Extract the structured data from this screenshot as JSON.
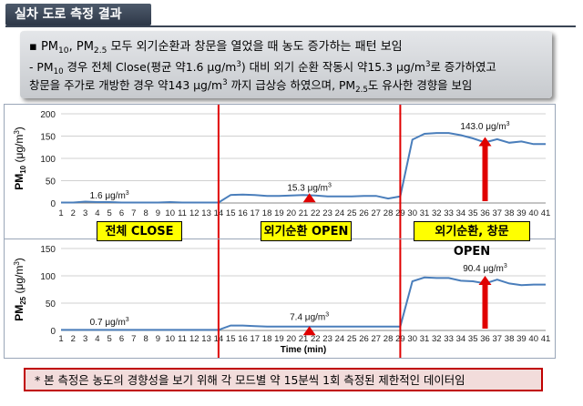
{
  "header": {
    "title": "실차 도로 측정 결과"
  },
  "summary": {
    "bullet": "▪",
    "line1_a": "PM",
    "line1_a_sub": "10",
    "line1_b": ", PM",
    "line1_b_sub": "2.5",
    "line1_c": " 모두 외기순환과 창문을 열었을 때 농도 증가하는 패턴 보임",
    "line2_a": "- PM",
    "line2_a_sub": "10",
    "line2_b": " 경우 전체 Close(평균 약1.6 μg/m",
    "line2_b_sup": "3",
    "line2_c": ") 대비 외기 순환 작동시 약15.3 μg/m",
    "line2_c_sup": "3",
    "line2_d": "로 증가하였고",
    "line3_a": "창문을 주가로 개방한 경우 약143 μg/m",
    "line3_a_sup": "3",
    "line3_b": " 까지 급상승 하였으며, PM",
    "line3_b_sub": "2.5",
    "line3_c": "도 유사한 경향을 보임"
  },
  "modes": [
    "전체 CLOSE",
    "외기순환 OPEN",
    "외기순환, 창문 OPEN"
  ],
  "note": "* 본 측정은 농도의 경향성을 보기 위해 각 모드별 약 15분씩 1회 측정된 제한적인 데이터임",
  "chart_data": [
    {
      "type": "line",
      "ylabel_main": "PM",
      "ylabel_sub": "10",
      "ylabel_unit": " (μg/m",
      "ylabel_sup": "3",
      "ylabel_close": ")",
      "xlabel": "",
      "ylim": [
        0,
        200
      ],
      "yticks": [
        "0",
        "50",
        "100",
        "150",
        "200"
      ],
      "xticks": [
        "1",
        "2",
        "3",
        "4",
        "5",
        "6",
        "7",
        "8",
        "9",
        "10",
        "11",
        "12",
        "13",
        "14",
        "15",
        "16",
        "17",
        "18",
        "19",
        "20",
        "21",
        "22",
        "23",
        "24",
        "25",
        "26",
        "27",
        "28",
        "29",
        "30",
        "31",
        "32",
        "33",
        "34",
        "35",
        "36",
        "37",
        "38",
        "39",
        "40",
        "41"
      ],
      "x": [
        1,
        2,
        3,
        4,
        5,
        6,
        7,
        8,
        9,
        10,
        11,
        12,
        13,
        14,
        15,
        16,
        17,
        18,
        19,
        20,
        21,
        22,
        23,
        24,
        25,
        26,
        27,
        28,
        29,
        30,
        31,
        32,
        33,
        34,
        35,
        36,
        37,
        38,
        39,
        40,
        41
      ],
      "series": [
        {
          "values": [
            1,
            1,
            3,
            2,
            2,
            1,
            1,
            1,
            1,
            2,
            1,
            1,
            1,
            1,
            18,
            19,
            18,
            16,
            16,
            17,
            18,
            17,
            15,
            15,
            15,
            16,
            16,
            10,
            15,
            142,
            155,
            157,
            157,
            152,
            145,
            136,
            143,
            135,
            138,
            132,
            132
          ]
        }
      ],
      "line_color": "#4a7ebb",
      "annotations": [
        {
          "text": "1.6 μg/m",
          "sup": "3",
          "x": 5,
          "y": 10
        },
        {
          "text": "15.3 μg/m",
          "sup": "3",
          "x": 21.5,
          "y": 28
        },
        {
          "text": "143.0 μg/m",
          "sup": "3",
          "x": 36,
          "y": 165
        }
      ],
      "arrows": [
        {
          "x": 21.5,
          "y_from": 0,
          "y_to": 22
        },
        {
          "x": 36,
          "y_from": 0,
          "y_to": 148
        }
      ],
      "dividers": [
        14,
        29
      ],
      "grid": true
    },
    {
      "type": "line",
      "ylabel_main": "PM",
      "ylabel_sub": "25",
      "ylabel_unit": " (μg/m",
      "ylabel_sup": "3",
      "ylabel_close": ")",
      "xlabel": "Time (min)",
      "ylim": [
        0,
        150
      ],
      "yticks": [
        "0",
        "50",
        "100",
        "150"
      ],
      "xticks": [
        "1",
        "2",
        "3",
        "4",
        "5",
        "6",
        "7",
        "8",
        "9",
        "10",
        "11",
        "12",
        "13",
        "14",
        "15",
        "16",
        "17",
        "18",
        "19",
        "20",
        "21",
        "22",
        "23",
        "24",
        "25",
        "26",
        "27",
        "28",
        "29",
        "30",
        "31",
        "32",
        "33",
        "34",
        "35",
        "36",
        "37",
        "38",
        "39",
        "40",
        "41"
      ],
      "x": [
        1,
        2,
        3,
        4,
        5,
        6,
        7,
        8,
        9,
        10,
        11,
        12,
        13,
        14,
        15,
        16,
        17,
        18,
        19,
        20,
        21,
        22,
        23,
        24,
        25,
        26,
        27,
        28,
        29,
        30,
        31,
        32,
        33,
        34,
        35,
        36,
        37,
        38,
        39,
        40,
        41
      ],
      "series": [
        {
          "values": [
            1,
            1,
            1,
            1,
            1,
            1,
            1,
            1,
            1,
            1,
            1,
            1,
            1,
            1,
            9,
            9,
            8,
            7,
            7,
            7,
            7,
            7,
            7,
            7,
            7,
            7,
            7,
            7,
            7,
            90,
            97,
            96,
            96,
            91,
            90,
            86,
            93,
            86,
            83,
            84,
            84
          ]
        }
      ],
      "line_color": "#4a7ebb",
      "annotations": [
        {
          "text": "0.7 μg/m",
          "sup": "3",
          "x": 5,
          "y": 10
        },
        {
          "text": "7.4 μg/m",
          "sup": "3",
          "x": 21.5,
          "y": 19
        },
        {
          "text": "90.4 μg/m",
          "sup": "3",
          "x": 36,
          "y": 108
        }
      ],
      "arrows": [
        {
          "x": 21.5,
          "y_from": 0,
          "y_to": 8
        },
        {
          "x": 36,
          "y_from": 0,
          "y_to": 100
        }
      ],
      "dividers": [
        14,
        29
      ],
      "grid": true
    }
  ]
}
